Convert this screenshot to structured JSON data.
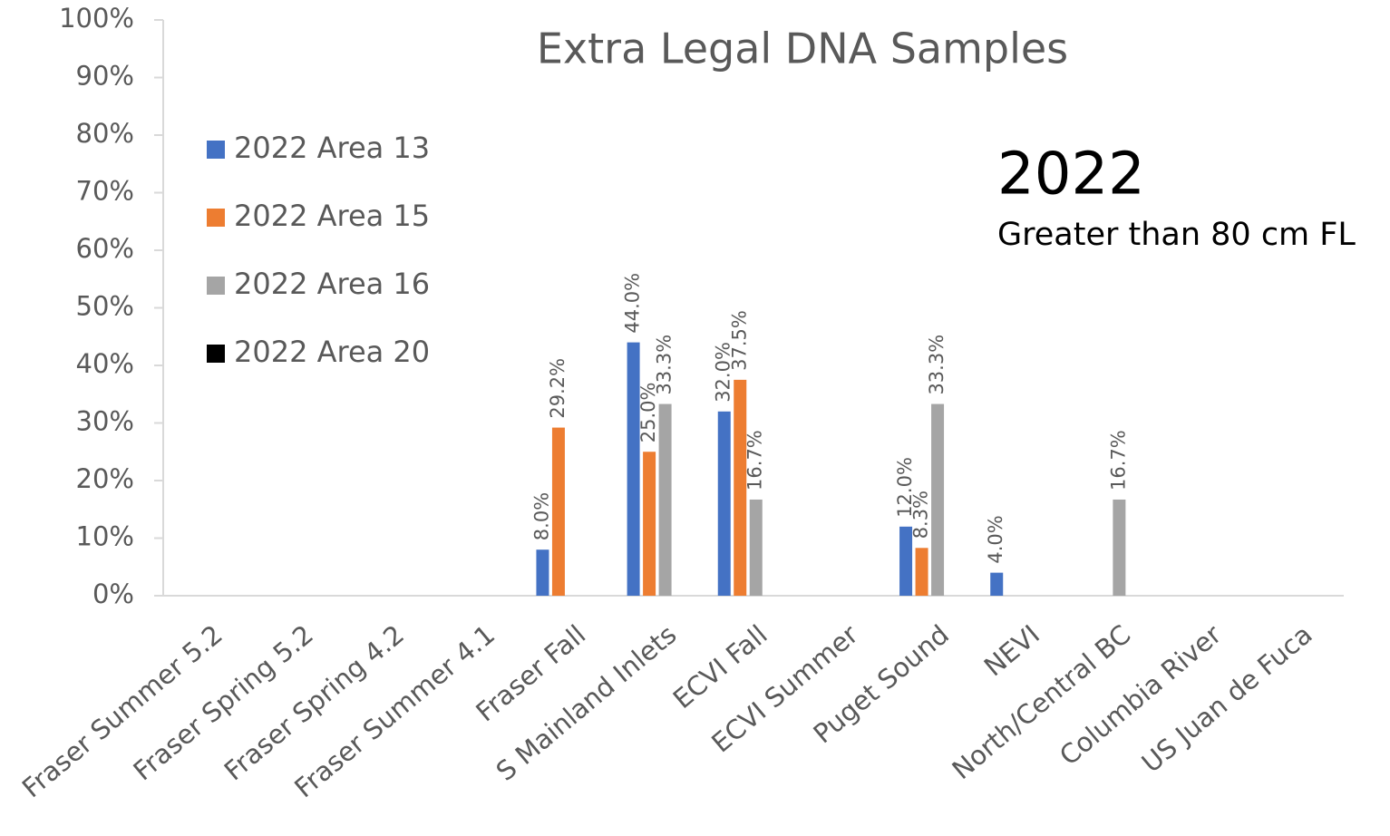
{
  "chart_data": {
    "type": "bar",
    "title": "Extra Legal DNA Samples",
    "annotations": [
      "2022",
      "Greater than 80 cm FL"
    ],
    "categories": [
      "Fraser Summer 5.2",
      "Fraser Spring 5.2",
      "Fraser Spring 4.2",
      "Fraser Summer 4.1",
      "Fraser Fall",
      "S Mainland Inlets",
      "ECVI Fall",
      "ECVI Summer",
      "Puget Sound",
      "NEVI",
      "North/Central BC",
      "Columbia River",
      "US Juan de Fuca"
    ],
    "series": [
      {
        "name": "2022 Area 13",
        "color": "#4472c4",
        "values": [
          null,
          null,
          null,
          null,
          8.0,
          44.0,
          32.0,
          null,
          12.0,
          4.0,
          null,
          null,
          null
        ],
        "value_labels": [
          null,
          null,
          null,
          null,
          "8.0%",
          "44.0%",
          "32.0%",
          null,
          "12.0%",
          "4.0%",
          null,
          null,
          null
        ]
      },
      {
        "name": "2022 Area 15",
        "color": "#ed7d31",
        "values": [
          null,
          null,
          null,
          null,
          29.2,
          25.0,
          37.5,
          null,
          8.3,
          null,
          null,
          null,
          null
        ],
        "value_labels": [
          null,
          null,
          null,
          null,
          "29.2%",
          "25.0%",
          "37.5%",
          null,
          "8.3%",
          null,
          null,
          null,
          null
        ]
      },
      {
        "name": "2022 Area 16",
        "color": "#a5a5a5",
        "values": [
          null,
          null,
          null,
          null,
          null,
          33.3,
          16.7,
          null,
          33.3,
          null,
          16.7,
          null,
          null
        ],
        "value_labels": [
          null,
          null,
          null,
          null,
          null,
          "33.3%",
          "16.7%",
          null,
          "33.3%",
          null,
          "16.7%",
          null,
          null
        ]
      },
      {
        "name": "2022 Area 20",
        "color": "#000000",
        "values": [
          null,
          null,
          null,
          null,
          null,
          null,
          null,
          null,
          null,
          null,
          null,
          null,
          null
        ]
      }
    ],
    "ylim": [
      0,
      100
    ],
    "yticks": [
      {
        "value": 0,
        "label": "0%"
      },
      {
        "value": 10,
        "label": "10%"
      },
      {
        "value": 20,
        "label": "20%"
      },
      {
        "value": 30,
        "label": "30%"
      },
      {
        "value": 40,
        "label": "40%"
      },
      {
        "value": 50,
        "label": "50%"
      },
      {
        "value": 60,
        "label": "60%"
      },
      {
        "value": 70,
        "label": "70%"
      },
      {
        "value": 80,
        "label": "80%"
      },
      {
        "value": 90,
        "label": "90%"
      },
      {
        "value": 100,
        "label": "100%"
      }
    ],
    "grid": false,
    "legend": "upper left"
  }
}
